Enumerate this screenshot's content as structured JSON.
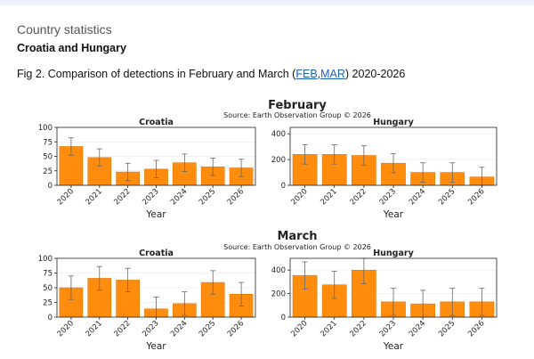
{
  "header": {
    "section_title": "Country statistics",
    "subtitle": "Croatia and Hungary",
    "fig_prefix": "Fig 2.  Comparison of detections in February and March (",
    "link_feb": "FEB",
    "link_sep": ",",
    "link_mar": "MAR",
    "fig_suffix": ") 2020-2026"
  },
  "colors": {
    "bar": "#ff8c0c",
    "bar_edge": "#d87000",
    "error": "#666666"
  },
  "chart_data": [
    {
      "type": "bar",
      "group_title": "February",
      "source": "Source: Earth Observation Group © 2026",
      "title": "Croatia",
      "xlabel": "Year",
      "categories": [
        "2020",
        "2021",
        "2022",
        "2023",
        "2024",
        "2025",
        "2026"
      ],
      "values": [
        67,
        48,
        23,
        28,
        39,
        32,
        30
      ],
      "errors": [
        15,
        15,
        15,
        15,
        15,
        15,
        15
      ],
      "ylim": [
        0,
        100
      ],
      "yticks": [
        0,
        25,
        50,
        75,
        100
      ]
    },
    {
      "type": "bar",
      "group_title": "February",
      "title": "Hungary",
      "xlabel": "Year",
      "categories": [
        "2020",
        "2021",
        "2022",
        "2023",
        "2024",
        "2025",
        "2026"
      ],
      "values": [
        240,
        240,
        232,
        172,
        100,
        100,
        65
      ],
      "errors": [
        75,
        75,
        75,
        75,
        75,
        75,
        75
      ],
      "ylim": [
        0,
        450
      ],
      "yticks": [
        0,
        200,
        400
      ]
    },
    {
      "type": "bar",
      "group_title": "March",
      "source": "Source: Earth Observation Group © 2026",
      "title": "Croatia",
      "xlabel": "Year",
      "categories": [
        "2020",
        "2021",
        "2022",
        "2023",
        "2024",
        "2025",
        "2026"
      ],
      "values": [
        50,
        66,
        63,
        14,
        23,
        59,
        39
      ],
      "errors": [
        20,
        20,
        20,
        20,
        20,
        20,
        20
      ],
      "ylim": [
        0,
        100
      ],
      "yticks": [
        0,
        25,
        50,
        75,
        100
      ]
    },
    {
      "type": "bar",
      "group_title": "March",
      "title": "Hungary",
      "xlabel": "Year",
      "categories": [
        "2020",
        "2021",
        "2022",
        "2023",
        "2024",
        "2025",
        "2026"
      ],
      "values": [
        355,
        275,
        400,
        130,
        113,
        130,
        130
      ],
      "errors": [
        115,
        115,
        115,
        115,
        115,
        115,
        115
      ],
      "ylim": [
        0,
        500
      ],
      "yticks": [
        0,
        200,
        400
      ]
    }
  ]
}
